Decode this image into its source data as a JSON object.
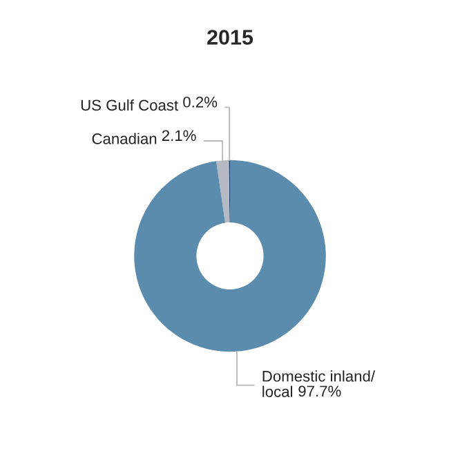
{
  "chart_data": {
    "type": "donut",
    "title": "2015",
    "categories": [
      "US Gulf Coast",
      "Canadian",
      "Domestic inland/\nlocal"
    ],
    "values": [
      0.2,
      2.1,
      97.7
    ],
    "colors": [
      "#1f3f6e",
      "#b4b9c3",
      "#5b8cae"
    ],
    "value_labels": [
      "0.2%",
      "2.1%",
      "97.7%"
    ],
    "legend": false
  }
}
